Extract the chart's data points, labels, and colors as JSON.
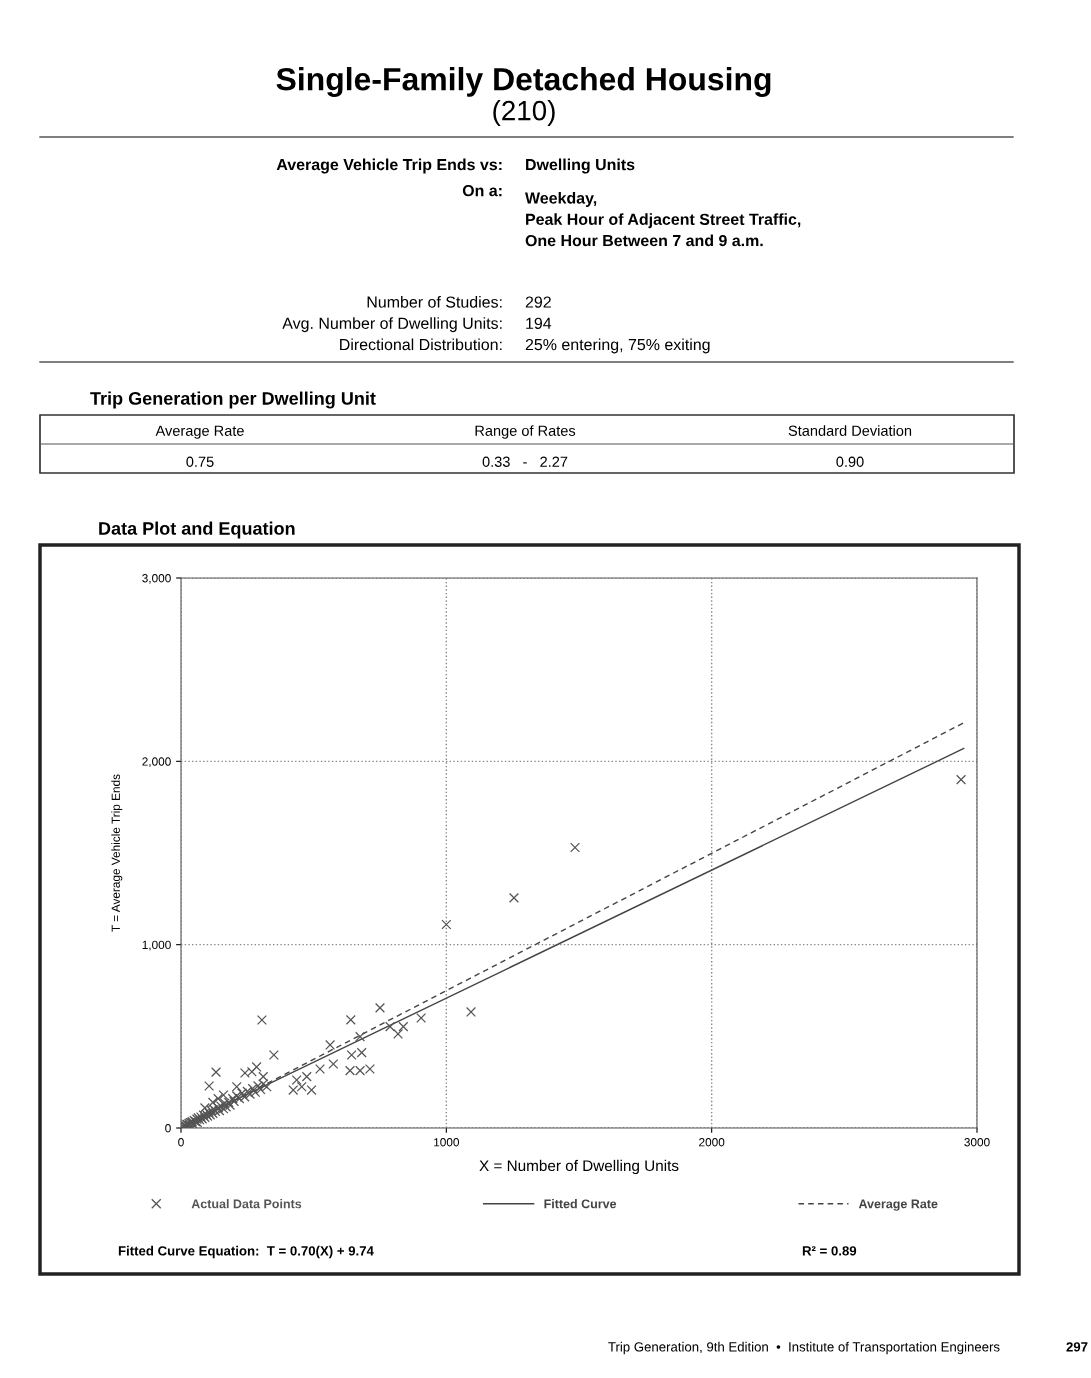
{
  "chart_data": {
    "type": "scatter",
    "title": "Single-Family Detached Housing",
    "subtitle": "(210)",
    "xlabel": "X = Number of Dwelling Units",
    "ylabel": "T = Average Vehicle Trip Ends",
    "xlim": [
      0,
      3000
    ],
    "xticks": [
      0,
      1000,
      2000,
      3000
    ],
    "ylim": [
      0,
      3000
    ],
    "yticks": [
      0,
      {
        "value": 1000,
        "label": "1,000"
      },
      {
        "value": 2000,
        "label": "2,000"
      },
      {
        "value": 3000,
        "label": "3,000"
      }
    ],
    "grid": true,
    "legend": "bottom",
    "series": [
      {
        "name": "Actual Data Points",
        "marker": "cross",
        "color": "#555555",
        "x": [
          2940,
          1485,
          1255,
          1000,
          1093,
          305,
          750,
          640,
          905,
          350,
          132,
          106,
          562,
          675,
          643,
          681,
          574,
          524,
          788,
          838,
          818,
          637,
          675,
          712,
          436,
          474,
          423,
          492,
          455,
          267,
          285,
          310,
          241,
          210,
          323,
          10,
          15,
          20,
          22,
          25,
          30,
          32,
          35,
          40,
          42,
          45,
          50,
          55,
          60,
          62,
          65,
          70,
          75,
          80,
          85,
          90,
          95,
          100,
          105,
          110,
          115,
          120,
          125,
          130,
          140,
          145,
          150,
          160,
          165,
          170,
          180,
          185,
          195,
          200,
          210,
          220,
          230,
          240,
          250,
          260,
          270,
          280,
          290,
          300,
          310,
          160,
          140,
          120,
          90
        ],
        "values": [
          1900,
          1530,
          1255,
          1110,
          633,
          589,
          655,
          590,
          600,
          398,
          305,
          229,
          453,
          498,
          398,
          411,
          349,
          322,
          553,
          553,
          513,
          313,
          313,
          322,
          262,
          280,
          207,
          207,
          225,
          307,
          333,
          280,
          300,
          225,
          225,
          8,
          12,
          10,
          20,
          18,
          25,
          15,
          30,
          28,
          35,
          22,
          40,
          35,
          48,
          30,
          55,
          45,
          60,
          50,
          70,
          58,
          75,
          65,
          85,
          72,
          95,
          80,
          100,
          90,
          110,
          95,
          120,
          105,
          135,
          115,
          140,
          125,
          160,
          145,
          175,
          160,
          190,
          170,
          200,
          185,
          215,
          195,
          230,
          210,
          240,
          180,
          160,
          140,
          110
        ]
      },
      {
        "name": "Fitted Curve",
        "type": "line",
        "line_style": "solid",
        "color": "#444444",
        "x": [
          0,
          2950
        ],
        "values": [
          10,
          2070
        ]
      },
      {
        "name": "Average Rate",
        "type": "line",
        "line_style": "dashed",
        "color": "#444444",
        "x": [
          0,
          2950
        ],
        "values": [
          0,
          2210
        ]
      }
    ],
    "annotations": [
      "Average Vehicle Trip Ends vs:",
      "Dwelling Units",
      "On a:",
      "Weekday,\nPeak Hour of Adjacent Street Traffic,\nOne Hour Between 7 and 9 a.m.",
      "Number of Studies:\nAvg. Number of Dwelling Units:\nDirectional Distribution:",
      "292\n194\n25% entering, 75% exiting",
      "Trip Generation per Dwelling Unit",
      "Average Rate",
      "Range of Rates",
      "Standard Deviation",
      "0.75",
      "0.33   -   2.27",
      "0.90",
      "Data Plot and Equation",
      "Fitted Curve Equation:  T = 0.70(X) + 9.74",
      "R² = 0.89",
      "Trip Generation, 9th Edition  •  Institute of Transportation Engineers",
      "297"
    ]
  }
}
